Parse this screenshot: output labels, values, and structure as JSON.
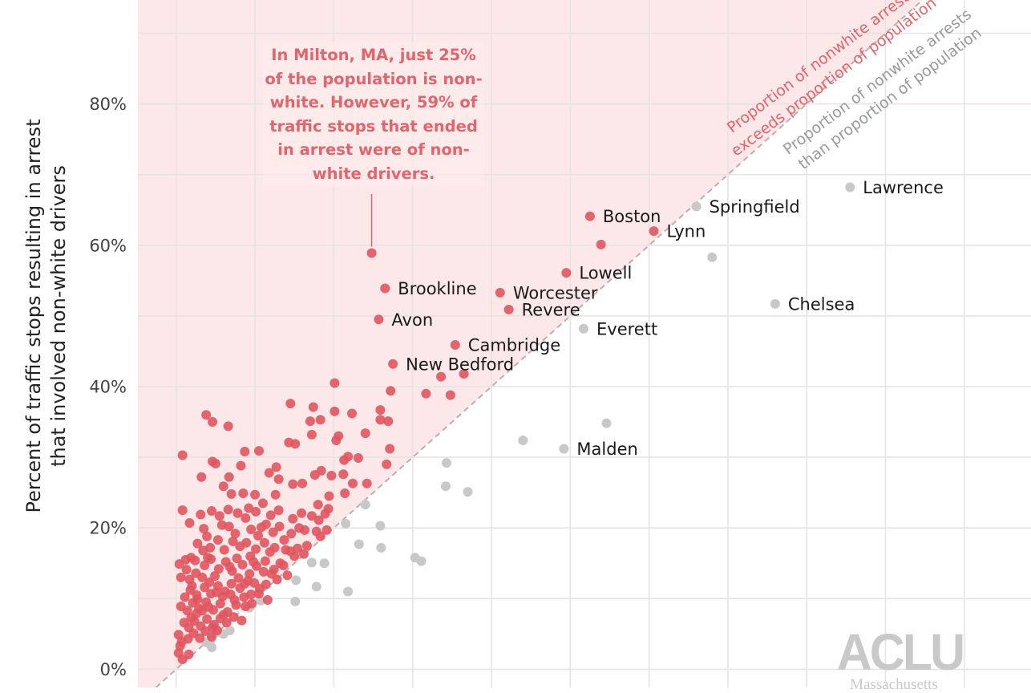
{
  "chart_data": {
    "type": "scatter",
    "xlim": [
      -5,
      105
    ],
    "ylim": [
      0,
      95
    ],
    "yticks": [
      0,
      20,
      40,
      60,
      80
    ],
    "ytick_labels": [
      "0%",
      "20%",
      "40%",
      "60%",
      "80%"
    ],
    "ylabel_line1": "Percent of traffic stops resulting in arrest",
    "ylabel_line2": "that involved non-white drivers",
    "grid": true,
    "reference_line": "y = x",
    "region_labels": {
      "above_line1": "Proportion of nonwhite arrests",
      "above_line2": "exceeds proportion of population",
      "below_line1": "Proportion of nonwhite arrests",
      "below_line2": "than proportion of population"
    },
    "annotation": "In Milton, MA, just 25% of the population is non-white. However, 59% of traffic stops that ended in arrest were of non-white drivers.",
    "colors": {
      "above": "#e0555f",
      "below": "#c8c8c8",
      "shade": "#fce8e9",
      "annotation": "#e0656c"
    },
    "labeled_points": [
      {
        "name": "Boston",
        "x": 52.5,
        "y": 64.1,
        "group": "above"
      },
      {
        "name": "Lynn",
        "x": 60.6,
        "y": 62.0,
        "group": "above"
      },
      {
        "name": "Lowell",
        "x": 49.5,
        "y": 56.1,
        "group": "above"
      },
      {
        "name": "Brookline",
        "x": 26.5,
        "y": 53.9,
        "group": "above"
      },
      {
        "name": "Worcester",
        "x": 41.1,
        "y": 53.3,
        "group": "above"
      },
      {
        "name": "Revere",
        "x": 42.2,
        "y": 50.9,
        "group": "above"
      },
      {
        "name": "Avon",
        "x": 25.7,
        "y": 49.5,
        "group": "above"
      },
      {
        "name": "Cambridge",
        "x": 35.4,
        "y": 45.9,
        "group": "above"
      },
      {
        "name": "New Bedford",
        "x": 27.5,
        "y": 43.2,
        "group": "above"
      },
      {
        "name": "Springfield",
        "x": 66.0,
        "y": 65.5,
        "group": "below"
      },
      {
        "name": "Lawrence",
        "x": 85.5,
        "y": 68.2,
        "group": "below"
      },
      {
        "name": "Chelsea",
        "x": 76.0,
        "y": 51.7,
        "group": "below"
      },
      {
        "name": "Everett",
        "x": 51.7,
        "y": 48.2,
        "group": "below"
      },
      {
        "name": "Malden",
        "x": 49.2,
        "y": 31.2,
        "group": "below"
      }
    ],
    "milton_point": {
      "x": 24.8,
      "y": 58.9,
      "group": "above"
    },
    "red_points_extra": [
      [
        53.9,
        60.1
      ],
      [
        36.5,
        41.8
      ],
      [
        33.6,
        41.4
      ],
      [
        34.8,
        38.8
      ],
      [
        31.7,
        39.0
      ],
      [
        27.2,
        39.4
      ],
      [
        25.9,
        36.7
      ],
      [
        22.3,
        36.2
      ],
      [
        25.9,
        35.3
      ],
      [
        26.9,
        35.1
      ],
      [
        20.6,
        33.0
      ],
      [
        20.3,
        32.4
      ],
      [
        18.3,
        35.3
      ],
      [
        20.1,
        36.5
      ],
      [
        20.1,
        40.5
      ],
      [
        27.1,
        31.2
      ],
      [
        21.3,
        29.6
      ],
      [
        22.4,
        26.3
      ],
      [
        19.7,
        27.4
      ],
      [
        21.8,
        30.1
      ],
      [
        19.4,
        24.5
      ],
      [
        21.4,
        24.9
      ],
      [
        18.0,
        23.3
      ],
      [
        18.9,
        22.0
      ],
      [
        14.5,
        37.6
      ],
      [
        17.4,
        37.1
      ],
      [
        17.0,
        35.1
      ],
      [
        17.2,
        33.2
      ],
      [
        15.1,
        31.9
      ],
      [
        14.3,
        32.1
      ],
      [
        12.7,
        28.6
      ],
      [
        11.8,
        27.8
      ],
      [
        13.0,
        26.9
      ],
      [
        14.8,
        26.2
      ],
      [
        16.0,
        26.3
      ],
      [
        17.6,
        27.5
      ],
      [
        18.4,
        28.1
      ],
      [
        10.5,
        30.9
      ],
      [
        4.6,
        35.0
      ],
      [
        6.6,
        34.4
      ],
      [
        8.7,
        30.8
      ],
      [
        8.2,
        28.8
      ],
      [
        6.7,
        27.2
      ],
      [
        4.6,
        29.4
      ],
      [
        5.0,
        29.1
      ],
      [
        3.2,
        27.2
      ],
      [
        0.8,
        30.3
      ],
      [
        3.8,
        36.0
      ],
      [
        10.0,
        24.7
      ],
      [
        11.0,
        23.5
      ],
      [
        12.6,
        24.7
      ],
      [
        13.0,
        22.5
      ],
      [
        14.8,
        21.3
      ],
      [
        15.9,
        22.1
      ],
      [
        17.2,
        21.7
      ],
      [
        18.1,
        21.1
      ],
      [
        19.1,
        19.7
      ],
      [
        18.3,
        18.8
      ],
      [
        16.3,
        19.7
      ],
      [
        14.6,
        19.2
      ],
      [
        13.1,
        20.2
      ],
      [
        12.3,
        19.4
      ],
      [
        11.4,
        20.5
      ],
      [
        10.4,
        18.9
      ],
      [
        9.5,
        19.8
      ],
      [
        8.8,
        21.4
      ],
      [
        7.8,
        22.1
      ],
      [
        6.6,
        22.6
      ],
      [
        5.5,
        21.7
      ],
      [
        4.5,
        22.4
      ],
      [
        3.1,
        21.9
      ],
      [
        1.7,
        20.7
      ],
      [
        0.8,
        22.5
      ],
      [
        6.0,
        25.9
      ],
      [
        7.0,
        24.8
      ],
      [
        8.5,
        24.9
      ],
      [
        9.2,
        22.8
      ],
      [
        10.1,
        22.3
      ],
      [
        12.5,
        17.2
      ],
      [
        11.2,
        17.9
      ],
      [
        10.1,
        17.0
      ],
      [
        9.4,
        16.0
      ],
      [
        8.1,
        17.4
      ],
      [
        7.2,
        18.1
      ],
      [
        6.1,
        16.9
      ],
      [
        5.3,
        18.3
      ],
      [
        4.3,
        17.2
      ],
      [
        3.4,
        16.8
      ],
      [
        2.7,
        17.8
      ],
      [
        1.9,
        15.8
      ],
      [
        1.2,
        15.5
      ],
      [
        0.4,
        14.9
      ],
      [
        0.6,
        13.0
      ],
      [
        1.7,
        12.7
      ],
      [
        2.5,
        13.6
      ],
      [
        3.6,
        14.7
      ],
      [
        4.4,
        15.6
      ],
      [
        5.4,
        14.2
      ],
      [
        6.3,
        15.2
      ],
      [
        7.1,
        13.9
      ],
      [
        8.4,
        14.8
      ],
      [
        9.3,
        13.5
      ],
      [
        10.2,
        14.6
      ],
      [
        11.3,
        15.3
      ],
      [
        12.4,
        14.1
      ],
      [
        13.2,
        15.0
      ],
      [
        14.5,
        16.7
      ],
      [
        15.4,
        17.1
      ],
      [
        16.2,
        16.3
      ],
      [
        14.1,
        13.3
      ],
      [
        12.8,
        12.7
      ],
      [
        11.4,
        12.0
      ],
      [
        10.6,
        11.4
      ],
      [
        9.1,
        12.5
      ],
      [
        8.1,
        11.5
      ],
      [
        7.0,
        12.1
      ],
      [
        6.2,
        11.0
      ],
      [
        5.3,
        11.8
      ],
      [
        4.4,
        10.7
      ],
      [
        3.6,
        11.6
      ],
      [
        2.6,
        10.5
      ],
      [
        1.8,
        11.2
      ],
      [
        1.1,
        10.2
      ],
      [
        0.6,
        8.9
      ],
      [
        1.4,
        8.3
      ],
      [
        2.1,
        9.4
      ],
      [
        2.9,
        8.6
      ],
      [
        3.8,
        9.5
      ],
      [
        4.7,
        8.4
      ],
      [
        5.6,
        9.3
      ],
      [
        6.5,
        8.1
      ],
      [
        7.6,
        9.1
      ],
      [
        8.6,
        10.2
      ],
      [
        9.6,
        9.3
      ],
      [
        10.5,
        10.7
      ],
      [
        11.6,
        9.8
      ],
      [
        8.3,
        6.9
      ],
      [
        7.3,
        7.4
      ],
      [
        6.4,
        6.6
      ],
      [
        5.6,
        7.2
      ],
      [
        4.8,
        6.3
      ],
      [
        3.9,
        7.1
      ],
      [
        3.1,
        6.1
      ],
      [
        2.3,
        6.8
      ],
      [
        1.6,
        5.9
      ],
      [
        1.0,
        6.6
      ],
      [
        0.3,
        4.9
      ],
      [
        0.7,
        3.9
      ],
      [
        1.5,
        4.3
      ],
      [
        2.2,
        5.1
      ],
      [
        3.0,
        4.4
      ],
      [
        3.7,
        5.4
      ],
      [
        4.5,
        4.6
      ],
      [
        5.2,
        5.5
      ],
      [
        0.3,
        2.3
      ],
      [
        0.8,
        1.4
      ],
      [
        1.6,
        2.1
      ],
      [
        0.5,
        3.3
      ],
      [
        2.6,
        7.9
      ],
      [
        4.1,
        8.8
      ],
      [
        5.9,
        10.3
      ],
      [
        7.9,
        12.9
      ],
      [
        9.8,
        15.2
      ],
      [
        11.9,
        16.6
      ],
      [
        13.7,
        18.3
      ],
      [
        15.6,
        20.0
      ],
      [
        17.8,
        19.5
      ],
      [
        2.0,
        11.8
      ],
      [
        3.3,
        13.0
      ],
      [
        4.9,
        13.2
      ],
      [
        6.8,
        14.5
      ],
      [
        8.9,
        17.9
      ],
      [
        10.8,
        20.1
      ],
      [
        12.0,
        21.8
      ],
      [
        2.4,
        15.4
      ],
      [
        3.9,
        18.8
      ],
      [
        5.8,
        20.4
      ],
      [
        7.5,
        19.2
      ],
      [
        1.3,
        14.1
      ],
      [
        2.7,
        9.9
      ],
      [
        4.2,
        12.3
      ],
      [
        5.1,
        10.9
      ],
      [
        6.9,
        10.6
      ],
      [
        8.8,
        8.9
      ],
      [
        9.9,
        12.2
      ],
      [
        11.1,
        13.8
      ],
      [
        13.6,
        14.7
      ],
      [
        15.0,
        16.0
      ],
      [
        6.7,
        20.2
      ],
      [
        7.7,
        15.7
      ],
      [
        3.5,
        19.9
      ],
      [
        4.0,
        15.8
      ],
      [
        1.9,
        7.3
      ],
      [
        3.3,
        8.3
      ],
      [
        4.6,
        5.9
      ],
      [
        6.0,
        7.7
      ],
      [
        7.4,
        9.8
      ],
      [
        8.7,
        12.1
      ],
      [
        9.5,
        10.6
      ],
      [
        12.1,
        13.5
      ],
      [
        13.9,
        16.9
      ],
      [
        16.6,
        17.5
      ],
      [
        19.3,
        22.7
      ],
      [
        21.2,
        27.6
      ],
      [
        23.1,
        29.9
      ],
      [
        24.2,
        26.3
      ],
      [
        26.7,
        29.0
      ],
      [
        24.0,
        33.4
      ]
    ],
    "gray_points_extra": [
      [
        68.0,
        58.3
      ],
      [
        54.6,
        34.8
      ],
      [
        34.3,
        29.2
      ],
      [
        34.2,
        25.9
      ],
      [
        37.0,
        25.1
      ],
      [
        44.0,
        32.4
      ],
      [
        25.9,
        20.3
      ],
      [
        26.0,
        17.2
      ],
      [
        30.3,
        15.8
      ],
      [
        31.1,
        15.3
      ],
      [
        24.0,
        23.3
      ],
      [
        23.2,
        17.7
      ],
      [
        21.5,
        20.6
      ],
      [
        15.2,
        12.6
      ],
      [
        17.2,
        15.1
      ],
      [
        18.8,
        15.0
      ],
      [
        15.1,
        9.6
      ],
      [
        17.8,
        11.7
      ],
      [
        21.8,
        11.0
      ],
      [
        10.7,
        9.7
      ],
      [
        9.3,
        8.7
      ],
      [
        6.8,
        5.5
      ],
      [
        6.0,
        5.0
      ],
      [
        4.5,
        3.1
      ],
      [
        3.8,
        3.8
      ],
      [
        4.4,
        4.2
      ],
      [
        5.1,
        5.2
      ]
    ]
  }
}
